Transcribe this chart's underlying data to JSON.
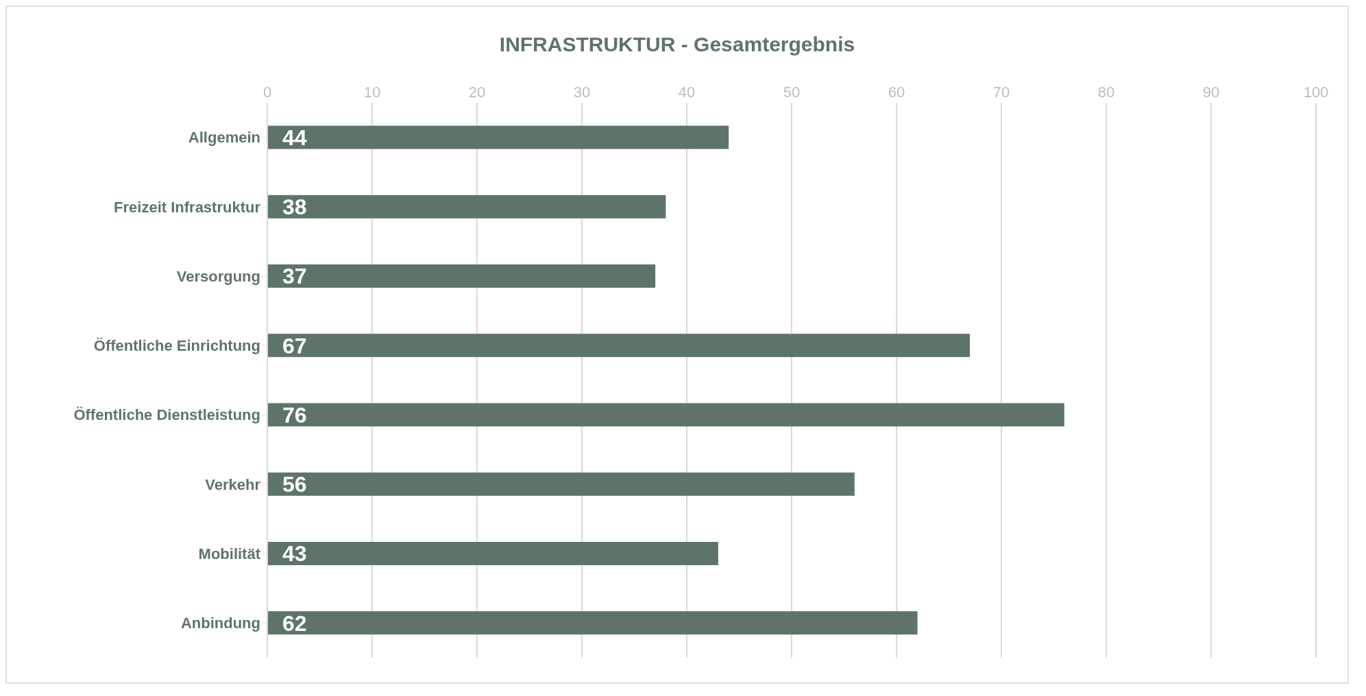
{
  "chart_data": {
    "type": "bar",
    "orientation": "horizontal",
    "title": "INFRASTRUKTUR - Gesamtergebnis",
    "categories": [
      "Allgemein",
      "Freizeit Infrastruktur",
      "Versorgung",
      "Öffentliche Einrichtung",
      "Öffentliche Dienstleistung",
      "Verkehr",
      "Mobilität",
      "Anbindung"
    ],
    "values": [
      44,
      38,
      37,
      67,
      76,
      56,
      43,
      62
    ],
    "color": "#5f7468",
    "xlim": [
      0,
      100
    ],
    "xticks": [
      0,
      10,
      20,
      30,
      40,
      50,
      60,
      70,
      80,
      90,
      100
    ],
    "grid": "x",
    "data_labels": true
  }
}
